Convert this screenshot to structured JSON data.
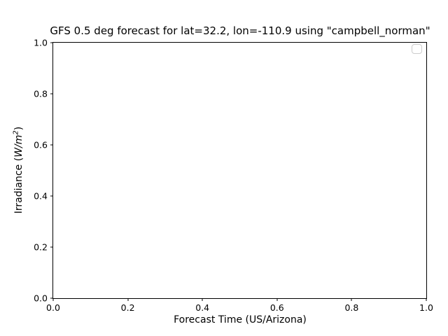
{
  "figure": {
    "background": "#ffffff"
  },
  "chart_data": {
    "type": "line",
    "title": "GFS 0.5 deg forecast for lat=32.2, lon=-110.9 using \"campbell_norman\"",
    "xlabel": "Forecast Time (US/Arizona)",
    "ylabel": "Irradiance (W/m²)",
    "xlim": [
      0.0,
      1.0
    ],
    "ylim": [
      0.0,
      1.0
    ],
    "x_ticks": [
      "0.0",
      "0.2",
      "0.4",
      "0.6",
      "0.8",
      "1.0"
    ],
    "y_ticks_top_to_bottom": [
      "1.0",
      "0.8",
      "0.6",
      "0.4",
      "0.2",
      "0.0"
    ],
    "series": [],
    "grid": false,
    "legend": {
      "visible": true,
      "position": "upper right",
      "entries": []
    }
  },
  "axes": {
    "y_label_prefix": "Irradiance (",
    "y_label_math": "W/m",
    "y_label_sup": "2",
    "y_label_suffix": ")"
  },
  "colors": {
    "spine": "#000000",
    "text": "#000000",
    "legend_border": "#cccccc",
    "background": "#ffffff"
  }
}
